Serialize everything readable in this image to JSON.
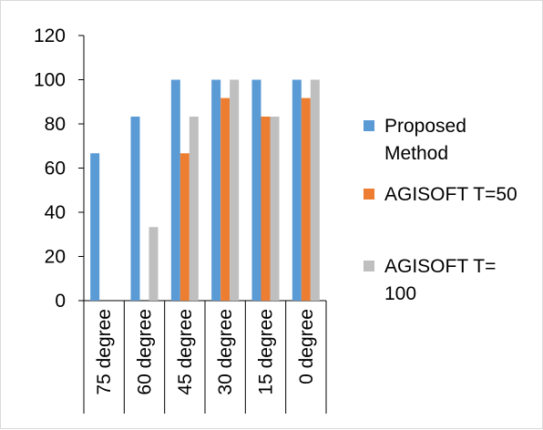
{
  "chart_data": {
    "type": "bar",
    "categories": [
      "75 degree",
      "60 degree",
      "45 degree",
      "30 degree",
      "15 degree",
      "0 degree"
    ],
    "series": [
      {
        "name": "Proposed Method",
        "color": "#5B9BD5",
        "values": [
          66.7,
          83.3,
          100,
          100,
          100,
          100
        ],
        "legend_lines": [
          "Proposed",
          "Method"
        ]
      },
      {
        "name": "AGISOFT T=50",
        "color": "#ED7D31",
        "values": [
          0,
          0,
          66.7,
          91.7,
          83.3,
          91.7
        ],
        "legend_lines": [
          "AGISOFT T=50"
        ]
      },
      {
        "name": "AGISOFT T= 100",
        "color": "#BFBFBF",
        "values": [
          0,
          33.3,
          83.3,
          100,
          83.3,
          100
        ],
        "legend_lines": [
          "AGISOFT T=",
          "100"
        ]
      }
    ],
    "ylim": [
      0,
      120
    ],
    "yticks": [
      "0",
      "20",
      "40",
      "60",
      "80",
      "100",
      "120"
    ],
    "grid": false,
    "legend_position": "right",
    "title": "",
    "xlabel": "",
    "ylabel": ""
  }
}
